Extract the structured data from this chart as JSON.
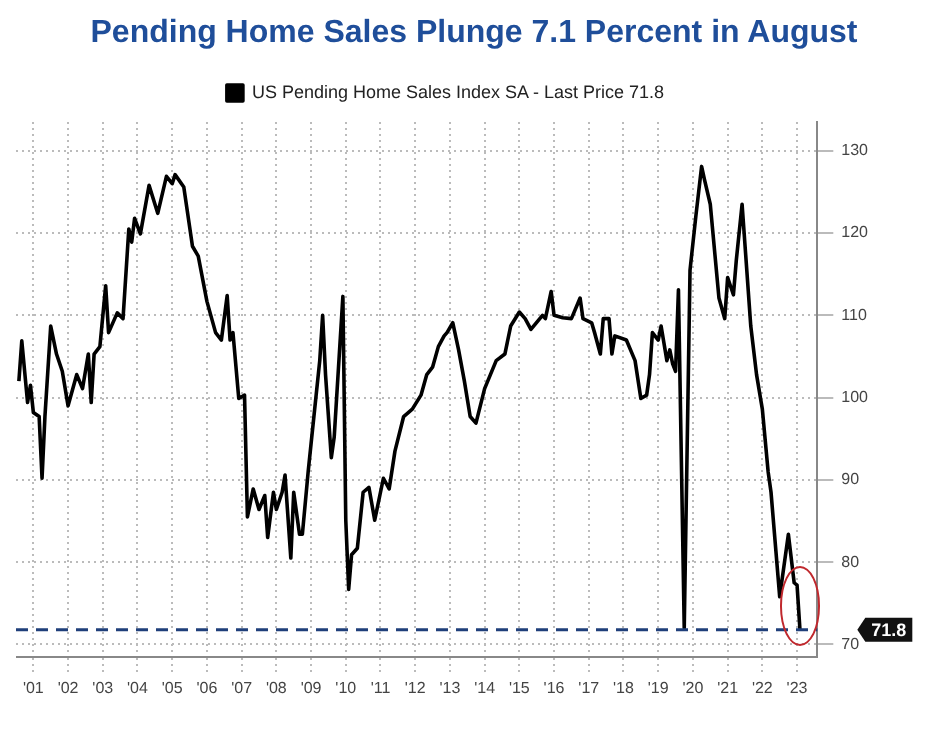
{
  "chart_data": {
    "type": "line",
    "title": "Pending Home Sales Plunge 7.1 Percent in August",
    "x": [
      "2001-02",
      "2001-03",
      "2001-05",
      "2001-06",
      "2001-07",
      "2001-09",
      "2001-10",
      "2001-11",
      "2002-01",
      "2002-03",
      "2002-05",
      "2002-07",
      "2002-10",
      "2002-12",
      "2003-02",
      "2003-03",
      "2003-04",
      "2003-06",
      "2003-08",
      "2003-09",
      "2003-12",
      "2004-02",
      "2004-04",
      "2004-05",
      "2004-06",
      "2004-08",
      "2004-11",
      "2005-02",
      "2005-05",
      "2005-07",
      "2005-08",
      "2005-11",
      "2006-02",
      "2006-04",
      "2006-07",
      "2006-10",
      "2006-12",
      "2007-02",
      "2007-03",
      "2007-04",
      "2007-06",
      "2007-08",
      "2007-09",
      "2007-11",
      "2008-01",
      "2008-03",
      "2008-04",
      "2008-06",
      "2008-07",
      "2008-09",
      "2008-10",
      "2008-12",
      "2009-01",
      "2009-03",
      "2009-04",
      "2009-06",
      "2009-07",
      "2009-10",
      "2009-11",
      "2009-12",
      "2010-02",
      "2010-03",
      "2010-06",
      "2010-07",
      "2010-08",
      "2010-09",
      "2010-11",
      "2011-01",
      "2011-03",
      "2011-05",
      "2011-08",
      "2011-10",
      "2011-12",
      "2012-03",
      "2012-06",
      "2012-09",
      "2012-11",
      "2013-01",
      "2013-03",
      "2013-05",
      "2013-06",
      "2013-08",
      "2013-10",
      "2013-12",
      "2014-02",
      "2014-04",
      "2014-07",
      "2014-11",
      "2015-02",
      "2015-04",
      "2015-07",
      "2015-09",
      "2015-11",
      "2016-03",
      "2016-04",
      "2016-06",
      "2016-07",
      "2016-10",
      "2017-01",
      "2017-04",
      "2017-05",
      "2017-08",
      "2017-09",
      "2017-11",
      "2017-12",
      "2018-02",
      "2018-03",
      "2018-04",
      "2018-08",
      "2018-11",
      "2019-01",
      "2019-03",
      "2019-04",
      "2019-05",
      "2019-07",
      "2019-08",
      "2019-10",
      "2019-11",
      "2019-12",
      "2020-01",
      "2020-02",
      "2020-04",
      "2020-06",
      "2020-08",
      "2020-10",
      "2020-11",
      "2021-01",
      "2021-04",
      "2021-06",
      "2021-07",
      "2021-09",
      "2021-10",
      "2021-12",
      "2022-03",
      "2022-05",
      "2022-07",
      "2022-09",
      "2022-10",
      "2023-01",
      "2023-04",
      "2023-06",
      "2023-07",
      "2023-08"
    ],
    "series": [
      {
        "name": "US Pending Home Sales Index SA - Last Price 71.8",
        "color": "#000000",
        "values": [
          102,
          106.9,
          99.4,
          101.5,
          98.2,
          97.7,
          90.2,
          97.7,
          108.7,
          105.3,
          103.2,
          99,
          102.8,
          101.1,
          105.3,
          99.4,
          105.3,
          106.2,
          113.6,
          107.9,
          110.3,
          109.6,
          120.5,
          118.9,
          121.8,
          119.9,
          125.8,
          122.4,
          126.9,
          126,
          127.1,
          125.6,
          118.4,
          117.2,
          111.7,
          107.9,
          107,
          112.4,
          107,
          107.9,
          99.9,
          100.3,
          85.5,
          88.9,
          86.4,
          88.1,
          83,
          88.5,
          86.4,
          88.5,
          90.6,
          80.5,
          88.5,
          83.4,
          83.4,
          91,
          94.4,
          104.5,
          110,
          102.8,
          92.7,
          95.2,
          112.3,
          85.1,
          76.7,
          80.9,
          81.7,
          88.5,
          89.1,
          85.1,
          90.2,
          88.9,
          93.5,
          97.7,
          98.6,
          100.3,
          102.8,
          103.7,
          106.2,
          107.5,
          107.9,
          109.1,
          105.8,
          102,
          97.7,
          96.9,
          101.1,
          104.5,
          105.3,
          108.7,
          110.4,
          109.6,
          108.3,
          110,
          109.6,
          112.9,
          110,
          109.7,
          109.6,
          112.1,
          109.6,
          109.1,
          107.9,
          105.3,
          109.6,
          109.6,
          105.3,
          107.5,
          107,
          104.5,
          99.9,
          100.3,
          102.8,
          107.9,
          107,
          108.7,
          104.5,
          105.8,
          104.1,
          103.2,
          113.1,
          72,
          115.5,
          122,
          128.1,
          126.5,
          123.5,
          112.1,
          109.6,
          114.6,
          112.5,
          116.7,
          123.5,
          108.7,
          102.8,
          98.6,
          91,
          88.5,
          75.8,
          83.4,
          77.5,
          77.2,
          71.8
        ]
      }
    ],
    "xlim": [
      "2001-01",
      "2024-02"
    ],
    "xticks": [
      {
        "value": "2001-07",
        "label": "'01"
      },
      {
        "value": "2002-07",
        "label": "'02"
      },
      {
        "value": "2003-07",
        "label": "'03"
      },
      {
        "value": "2004-07",
        "label": "'04"
      },
      {
        "value": "2005-07",
        "label": "'05"
      },
      {
        "value": "2006-07",
        "label": "'06"
      },
      {
        "value": "2007-07",
        "label": "'07"
      },
      {
        "value": "2008-07",
        "label": "'08"
      },
      {
        "value": "2009-07",
        "label": "'09"
      },
      {
        "value": "2010-07",
        "label": "'10"
      },
      {
        "value": "2011-07",
        "label": "'11"
      },
      {
        "value": "2012-07",
        "label": "'12"
      },
      {
        "value": "2013-07",
        "label": "'13"
      },
      {
        "value": "2014-07",
        "label": "'14"
      },
      {
        "value": "2015-07",
        "label": "'15"
      },
      {
        "value": "2016-07",
        "label": "'16"
      },
      {
        "value": "2017-07",
        "label": "'17"
      },
      {
        "value": "2018-07",
        "label": "'18"
      },
      {
        "value": "2019-07",
        "label": "'19"
      },
      {
        "value": "2020-07",
        "label": "'20"
      },
      {
        "value": "2021-07",
        "label": "'21"
      },
      {
        "value": "2022-07",
        "label": "'22"
      },
      {
        "value": "2023-07",
        "label": "'23"
      }
    ],
    "ylim": [
      68.5,
      133.5
    ],
    "yticks": [
      70,
      80,
      90,
      100,
      110,
      120,
      130
    ],
    "ref_lines": [
      {
        "axis": "y",
        "value": 71.8,
        "label": "71.8",
        "color": "#1f3f7a",
        "line_style": "dashed"
      }
    ],
    "grid": true,
    "legend": "top",
    "marker": "none",
    "line_style": "solid"
  }
}
